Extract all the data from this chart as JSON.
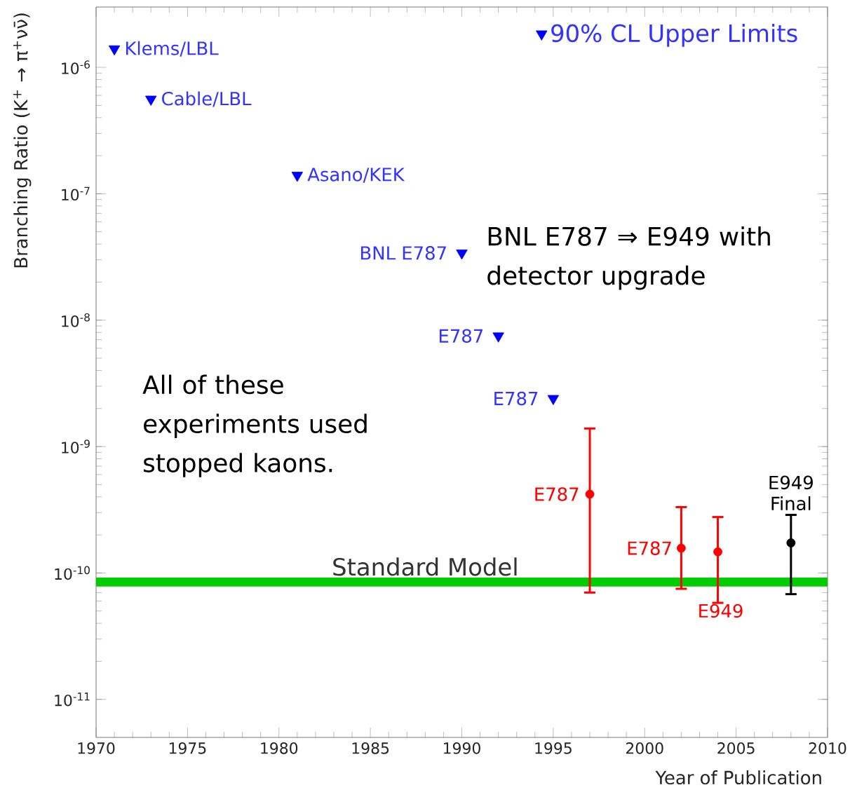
{
  "chart_data": {
    "type": "scatter",
    "xlabel": "Year of Publication",
    "ylabel": "Branching Ratio (K$^{+}$ → π$^{+}$νν̄)",
    "xlim": [
      1970,
      2010
    ],
    "xticks": [
      1970,
      1975,
      1980,
      1985,
      1990,
      1995,
      2000,
      2005,
      2010
    ],
    "ylim": [
      5e-12,
      3e-06
    ],
    "log": true,
    "yticks": [
      {
        "value": 1e-11,
        "label": "10$^{-11}$"
      },
      {
        "value": 1e-10,
        "label": "10$^{-10}$"
      },
      {
        "value": 1e-09,
        "label": "10$^{-9}$"
      },
      {
        "value": 1e-08,
        "label": "10$^{-8}$"
      },
      {
        "value": 1e-07,
        "label": "10$^{-7}$"
      },
      {
        "value": 1e-06,
        "label": "10$^{-6}$"
      }
    ],
    "legend": "top right",
    "grid": false,
    "series": [
      {
        "name": "90% CL Upper Limits",
        "color": "#0000ff",
        "marker": "triangle",
        "x": [
          1971,
          1973,
          1981,
          1990,
          1992,
          1995
        ],
        "values": [
          1.4e-06,
          5.6e-07,
          1.4e-07,
          3.4e-08,
          7.5e-09,
          2.4e-09
        ]
      },
      {
        "color": "#ff0000",
        "marker": "circle",
        "x": [
          1997,
          2002,
          2004
        ],
        "values": [
          4.2e-10,
          1.57e-10,
          1.47e-10
        ],
        "errors": [
          [
            7e-11,
            1.39e-09
          ],
          [
            7.5e-11,
            3.32e-10
          ],
          [
            5.8e-11,
            2.77e-10
          ]
        ]
      },
      {
        "color": "#000000",
        "marker": "circle",
        "x": [
          2008
        ],
        "values": [
          1.73e-10
        ],
        "errors": [
          [
            6.8e-11,
            2.88e-10
          ]
        ]
      }
    ],
    "bands": [
      {
        "axis": "y",
        "from": 7.8e-11,
        "to": 9.2e-11,
        "label": "Standard Model",
        "color": "#00cc00"
      }
    ],
    "annotations": [
      {
        "text": "Klems/LBL",
        "x": 1971,
        "y": 1.4e-06
      },
      {
        "text": "Cable/LBL",
        "x": 1973,
        "y": 5.6e-07
      },
      {
        "text": "Asano/KEK",
        "x": 1981,
        "y": 1.4e-07
      },
      {
        "text": "BNL E787",
        "x": 1990,
        "y": 3.4e-08
      },
      {
        "text": "E787",
        "x": 1992,
        "y": 7.5e-09
      },
      {
        "text": "E787",
        "x": 1995,
        "y": 2.4e-09
      },
      {
        "text": "E787",
        "x": 1997,
        "y": 4.2e-10
      },
      {
        "text": "E787",
        "x": 2002,
        "y": 1.57e-10
      },
      {
        "text": "E949",
        "x": 2004,
        "y": 1.47e-10
      },
      {
        "text": "E949 Final",
        "x": 2008,
        "y": 1.73e-10
      },
      "BNL E787 ⇒ E949 with detector upgrade",
      "All of these experiments used stopped kaons."
    ]
  }
}
